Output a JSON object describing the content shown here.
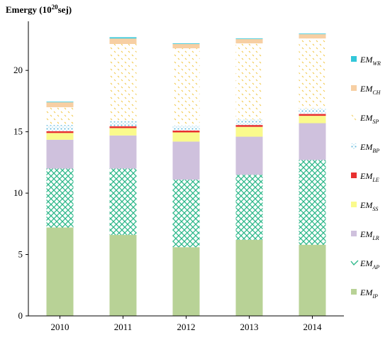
{
  "chart_data": {
    "type": "bar",
    "stacked": true,
    "ylabel_main": "Emergy (10",
    "ylabel_sup": "20",
    "ylabel_unit": "sej)",
    "xlabel": "",
    "categories": [
      "2010",
      "2011",
      "2012",
      "2013",
      "2014"
    ],
    "ylim": [
      0,
      24
    ],
    "yticks": [
      0,
      5,
      10,
      15,
      20
    ],
    "grid": false,
    "legend_position": "right",
    "series": [
      {
        "key": "IP",
        "base": "EM",
        "sub": "IP",
        "color": "#b8d296",
        "pattern": "solid",
        "values": [
          7.2,
          6.6,
          5.6,
          6.2,
          5.8
        ]
      },
      {
        "key": "AP",
        "base": "EM",
        "sub": "AP",
        "color": "#2db88a",
        "pattern": "crosshatch",
        "values": [
          4.8,
          5.4,
          5.5,
          5.3,
          6.9
        ]
      },
      {
        "key": "LR",
        "base": "EM",
        "sub": "LR",
        "color": "#cfc1dd",
        "pattern": "solid",
        "values": [
          2.35,
          2.7,
          3.1,
          3.1,
          3.0
        ]
      },
      {
        "key": "SS",
        "base": "EM",
        "sub": "SS",
        "color": "#fafa8c",
        "pattern": "solid",
        "values": [
          0.55,
          0.6,
          0.75,
          0.8,
          0.6
        ]
      },
      {
        "key": "LE",
        "base": "EM",
        "sub": "LE",
        "color": "#e83030",
        "pattern": "solid",
        "values": [
          0.15,
          0.15,
          0.15,
          0.15,
          0.15
        ]
      },
      {
        "key": "BP",
        "base": "EM",
        "sub": "BP",
        "color": "#8fd0ea",
        "pattern": "dots",
        "values": [
          0.5,
          0.4,
          0.4,
          0.45,
          0.45
        ]
      },
      {
        "key": "SP",
        "base": "EM",
        "sub": "SP",
        "color": "#f2d36b",
        "pattern": "dashes",
        "values": [
          1.45,
          6.3,
          6.3,
          6.2,
          5.7
        ]
      },
      {
        "key": "CH",
        "base": "EM",
        "sub": "CH",
        "color": "#f7cfa3",
        "pattern": "solid",
        "values": [
          0.4,
          0.45,
          0.35,
          0.35,
          0.35
        ]
      },
      {
        "key": "WR",
        "base": "EM",
        "sub": "WR",
        "color": "#33c7d9",
        "pattern": "solid",
        "values": [
          0.05,
          0.1,
          0.05,
          0.05,
          0.05
        ]
      }
    ]
  }
}
